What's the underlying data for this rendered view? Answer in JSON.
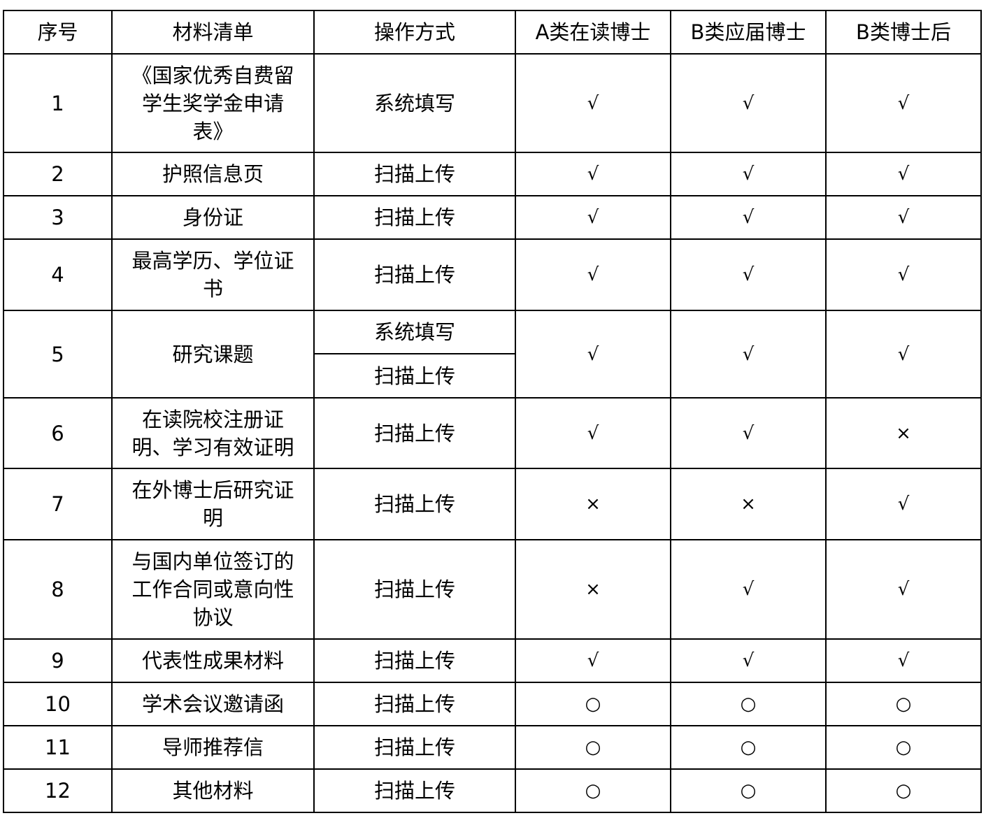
{
  "header": [
    "序号",
    "材料清单",
    "操作方式",
    "A类在读博士",
    "B类应届博士",
    "B类博士后"
  ],
  "rows": [
    {
      "no": "1",
      "material": "《国家优秀自费留\n学生奖学金申请\n表》",
      "methods": [
        "系统填写"
      ],
      "a": "√",
      "b": "√",
      "c": "√"
    },
    {
      "no": "2",
      "material": "护照信息页",
      "methods": [
        "扫描上传"
      ],
      "a": "√",
      "b": "√",
      "c": "√"
    },
    {
      "no": "3",
      "material": "身份证",
      "methods": [
        "扫描上传"
      ],
      "a": "√",
      "b": "√",
      "c": "√"
    },
    {
      "no": "4",
      "material": "最高学历、学位证\n书",
      "methods": [
        "扫描上传"
      ],
      "a": "√",
      "b": "√",
      "c": "√"
    },
    {
      "no": "5",
      "material": "研究课题",
      "methods": [
        "系统填写",
        "扫描上传"
      ],
      "a": "√",
      "b": "√",
      "c": "√"
    },
    {
      "no": "6",
      "material": "在读院校注册证\n明、学习有效证明",
      "methods": [
        "扫描上传"
      ],
      "a": "√",
      "b": "√",
      "c": "×"
    },
    {
      "no": "7",
      "material": "在外博士后研究证\n明",
      "methods": [
        "扫描上传"
      ],
      "a": "×",
      "b": "×",
      "c": "√"
    },
    {
      "no": "8",
      "material": "与国内单位签订的\n工作合同或意向性\n协议",
      "methods": [
        "扫描上传"
      ],
      "a": "×",
      "b": "√",
      "c": "√"
    },
    {
      "no": "9",
      "material": "代表性成果材料",
      "methods": [
        "扫描上传"
      ],
      "a": "√",
      "b": "√",
      "c": "√"
    },
    {
      "no": "10",
      "material": "学术会议邀请函",
      "methods": [
        "扫描上传"
      ],
      "a": "○",
      "b": "○",
      "c": "○"
    },
    {
      "no": "11",
      "material": "导师推荐信",
      "methods": [
        "扫描上传"
      ],
      "a": "○",
      "b": "○",
      "c": "○"
    },
    {
      "no": "12",
      "material": "其他材料",
      "methods": [
        "扫描上传"
      ],
      "a": "○",
      "b": "○",
      "c": "○"
    }
  ]
}
